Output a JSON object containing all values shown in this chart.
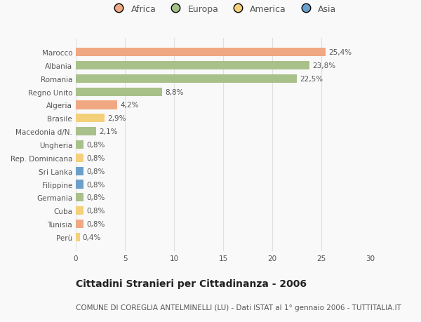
{
  "categories": [
    "Marocco",
    "Albania",
    "Romania",
    "Regno Unito",
    "Algeria",
    "Brasile",
    "Macedonia d/N.",
    "Ungheria",
    "Rep. Dominicana",
    "Sri Lanka",
    "Filippine",
    "Germania",
    "Cuba",
    "Tunisia",
    "Perù"
  ],
  "values": [
    25.4,
    23.8,
    22.5,
    8.8,
    4.2,
    2.9,
    2.1,
    0.8,
    0.8,
    0.8,
    0.8,
    0.8,
    0.8,
    0.8,
    0.4
  ],
  "labels": [
    "25,4%",
    "23,8%",
    "22,5%",
    "8,8%",
    "4,2%",
    "2,9%",
    "2,1%",
    "0,8%",
    "0,8%",
    "0,8%",
    "0,8%",
    "0,8%",
    "0,8%",
    "0,8%",
    "0,4%"
  ],
  "continents": [
    "Africa",
    "Europa",
    "Europa",
    "Europa",
    "Africa",
    "America",
    "Europa",
    "Europa",
    "America",
    "Asia",
    "Asia",
    "Europa",
    "America",
    "Africa",
    "America"
  ],
  "continent_colors": {
    "Africa": "#F0A882",
    "Europa": "#A8C08A",
    "America": "#F5D07A",
    "Asia": "#6A9FCC"
  },
  "legend_order": [
    "Africa",
    "Europa",
    "America",
    "Asia"
  ],
  "xlim": [
    0,
    30
  ],
  "xticks": [
    0,
    5,
    10,
    15,
    20,
    25,
    30
  ],
  "title": "Cittadini Stranieri per Cittadinanza - 2006",
  "subtitle": "COMUNE DI COREGLIA ANTELMINELLI (LU) - Dati ISTAT al 1° gennaio 2006 - TUTTITALIA.IT",
  "bg_color": "#f9f9f9",
  "grid_color": "#e0e0e0",
  "bar_height": 0.65,
  "title_fontsize": 10,
  "subtitle_fontsize": 7.5,
  "label_fontsize": 7.5,
  "tick_fontsize": 7.5,
  "legend_fontsize": 9
}
